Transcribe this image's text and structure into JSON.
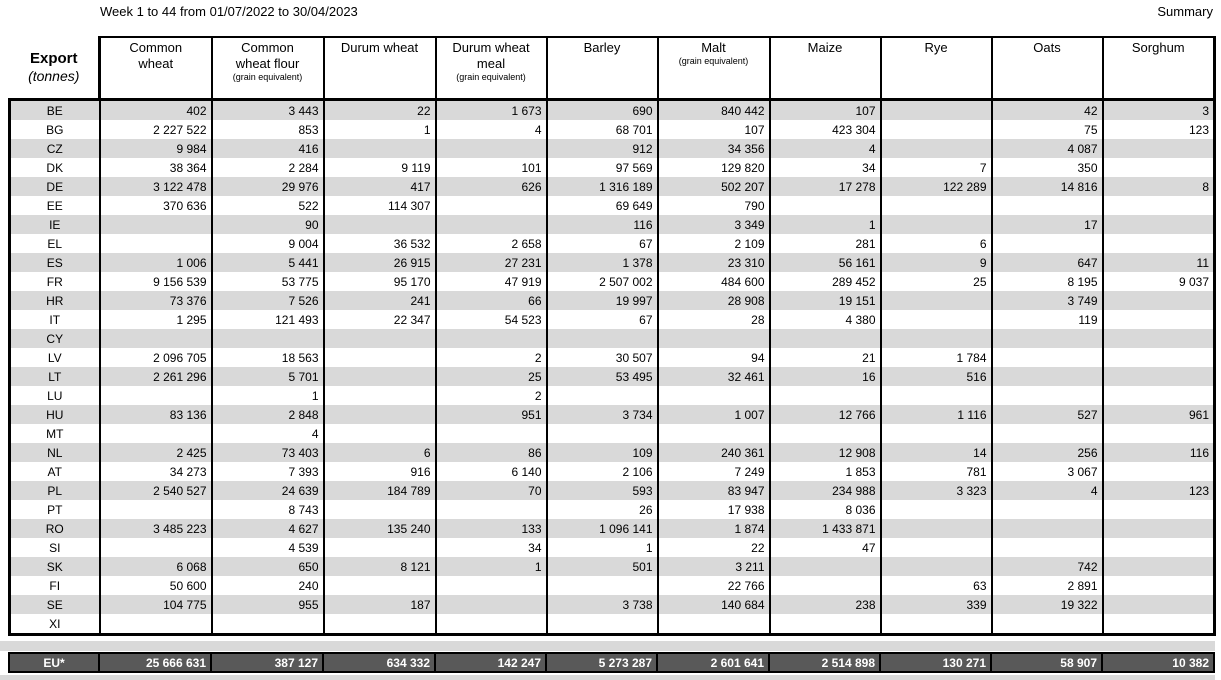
{
  "header": {
    "title": "Week 1 to 44 from 01/07/2022 to 30/04/2023",
    "summary_label": "Summary"
  },
  "colors": {
    "stripe": "#d9d9d9",
    "total_bg": "#595959",
    "total_text": "#ffffff"
  },
  "table": {
    "corner": {
      "label": "Export",
      "unit": "(tonnes)"
    },
    "columns": [
      {
        "label": "Common wheat",
        "sub": ""
      },
      {
        "label": "Common wheat flour",
        "sub": "(grain equivalent)"
      },
      {
        "label": "Durum wheat",
        "sub": ""
      },
      {
        "label": "Durum wheat meal",
        "sub": "(grain equivalent)"
      },
      {
        "label": "Barley",
        "sub": ""
      },
      {
        "label": "Malt",
        "sub": "(grain equivalent)"
      },
      {
        "label": "Maize",
        "sub": ""
      },
      {
        "label": "Rye",
        "sub": ""
      },
      {
        "label": "Oats",
        "sub": ""
      },
      {
        "label": "Sorghum",
        "sub": ""
      }
    ],
    "rows": [
      {
        "code": "BE",
        "values": [
          "402",
          "3 443",
          "22",
          "1 673",
          "690",
          "840 442",
          "107",
          "",
          "42",
          "3"
        ]
      },
      {
        "code": "BG",
        "values": [
          "2 227 522",
          "853",
          "1",
          "4",
          "68 701",
          "107",
          "423 304",
          "",
          "75",
          "123"
        ]
      },
      {
        "code": "CZ",
        "values": [
          "9 984",
          "416",
          "",
          "",
          "912",
          "34 356",
          "4",
          "",
          "4 087",
          ""
        ]
      },
      {
        "code": "DK",
        "values": [
          "38 364",
          "2 284",
          "9 119",
          "101",
          "97 569",
          "129 820",
          "34",
          "7",
          "350",
          ""
        ]
      },
      {
        "code": "DE",
        "values": [
          "3 122 478",
          "29 976",
          "417",
          "626",
          "1 316 189",
          "502 207",
          "17 278",
          "122 289",
          "14 816",
          "8"
        ]
      },
      {
        "code": "EE",
        "values": [
          "370 636",
          "522",
          "114 307",
          "",
          "69 649",
          "790",
          "",
          "",
          "",
          ""
        ]
      },
      {
        "code": "IE",
        "values": [
          "",
          "90",
          "",
          "",
          "116",
          "3 349",
          "1",
          "",
          "17",
          ""
        ]
      },
      {
        "code": "EL",
        "values": [
          "",
          "9 004",
          "36 532",
          "2 658",
          "67",
          "2 109",
          "281",
          "6",
          "",
          ""
        ]
      },
      {
        "code": "ES",
        "values": [
          "1 006",
          "5 441",
          "26 915",
          "27 231",
          "1 378",
          "23 310",
          "56 161",
          "9",
          "647",
          "11"
        ]
      },
      {
        "code": "FR",
        "values": [
          "9 156 539",
          "53 775",
          "95 170",
          "47 919",
          "2 507 002",
          "484 600",
          "289 452",
          "25",
          "8 195",
          "9 037"
        ]
      },
      {
        "code": "HR",
        "values": [
          "73 376",
          "7 526",
          "241",
          "66",
          "19 997",
          "28 908",
          "19 151",
          "",
          "3 749",
          ""
        ]
      },
      {
        "code": "IT",
        "values": [
          "1 295",
          "121 493",
          "22 347",
          "54 523",
          "67",
          "28",
          "4 380",
          "",
          "119",
          ""
        ]
      },
      {
        "code": "CY",
        "values": [
          "",
          "",
          "",
          "",
          "",
          "",
          "",
          "",
          "",
          ""
        ]
      },
      {
        "code": "LV",
        "values": [
          "2 096 705",
          "18 563",
          "",
          "2",
          "30 507",
          "94",
          "21",
          "1 784",
          "",
          ""
        ]
      },
      {
        "code": "LT",
        "values": [
          "2 261 296",
          "5 701",
          "",
          "25",
          "53 495",
          "32 461",
          "16",
          "516",
          "",
          ""
        ]
      },
      {
        "code": "LU",
        "values": [
          "",
          "1",
          "",
          "2",
          "",
          "",
          "",
          "",
          "",
          ""
        ]
      },
      {
        "code": "HU",
        "values": [
          "83 136",
          "2 848",
          "",
          "951",
          "3 734",
          "1 007",
          "12 766",
          "1 116",
          "527",
          "961"
        ]
      },
      {
        "code": "MT",
        "values": [
          "",
          "4",
          "",
          "",
          "",
          "",
          "",
          "",
          "",
          ""
        ]
      },
      {
        "code": "NL",
        "values": [
          "2 425",
          "73 403",
          "6",
          "86",
          "109",
          "240 361",
          "12 908",
          "14",
          "256",
          "116"
        ]
      },
      {
        "code": "AT",
        "values": [
          "34 273",
          "7 393",
          "916",
          "6 140",
          "2 106",
          "7 249",
          "1 853",
          "781",
          "3 067",
          ""
        ]
      },
      {
        "code": "PL",
        "values": [
          "2 540 527",
          "24 639",
          "184 789",
          "70",
          "593",
          "83 947",
          "234 988",
          "3 323",
          "4",
          "123"
        ]
      },
      {
        "code": "PT",
        "values": [
          "",
          "8 743",
          "",
          "",
          "26",
          "17 938",
          "8 036",
          "",
          "",
          ""
        ]
      },
      {
        "code": "RO",
        "values": [
          "3 485 223",
          "4 627",
          "135 240",
          "133",
          "1 096 141",
          "1 874",
          "1 433 871",
          "",
          "",
          ""
        ]
      },
      {
        "code": "SI",
        "values": [
          "",
          "4 539",
          "",
          "34",
          "1",
          "22",
          "47",
          "",
          "",
          ""
        ]
      },
      {
        "code": "SK",
        "values": [
          "6 068",
          "650",
          "8 121",
          "1",
          "501",
          "3 211",
          "",
          "",
          "742",
          ""
        ]
      },
      {
        "code": "FI",
        "values": [
          "50 600",
          "240",
          "",
          "",
          "",
          "22 766",
          "",
          "63",
          "2 891",
          ""
        ]
      },
      {
        "code": "SE",
        "values": [
          "104 775",
          "955",
          "187",
          "",
          "3 738",
          "140 684",
          "238",
          "339",
          "19 322",
          ""
        ]
      },
      {
        "code": "XI",
        "values": [
          "",
          "",
          "",
          "",
          "",
          "",
          "",
          "",
          "",
          ""
        ]
      }
    ],
    "total": {
      "code": "EU*",
      "values": [
        "25 666 631",
        "387 127",
        "634 332",
        "142 247",
        "5 273 287",
        "2 601 641",
        "2 514 898",
        "130 271",
        "58 907",
        "10 382"
      ]
    }
  }
}
